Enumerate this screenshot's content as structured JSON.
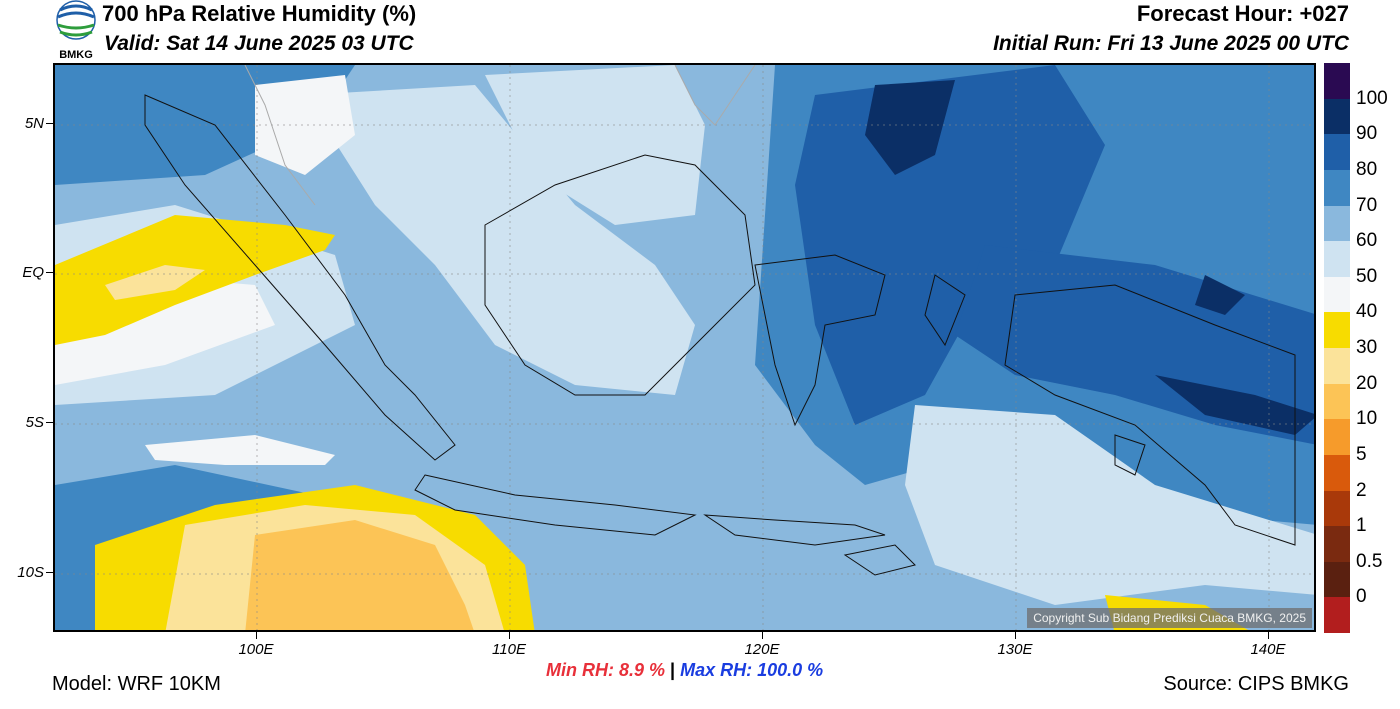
{
  "header": {
    "title": "700 hPa Relative Humidity (%)",
    "valid": "Valid: Sat 14 June 2025 03 UTC",
    "forecast_hour": "Forecast Hour: +027",
    "initial_run": "Initial Run: Fri 13 June 2025 00 UTC"
  },
  "logo": {
    "text": "BMKG"
  },
  "axes": {
    "lat_labels": [
      "5N",
      "EQ",
      "5S",
      "10S"
    ],
    "lon_labels": [
      "100E",
      "110E",
      "120E",
      "130E",
      "140E"
    ]
  },
  "colorbar": {
    "labels": [
      "100",
      "90",
      "80",
      "70",
      "60",
      "50",
      "40",
      "30",
      "20",
      "10",
      "5",
      "2",
      "1",
      "0.5",
      "0"
    ],
    "colors": [
      "#2a0a52",
      "#0b2f66",
      "#1f5fa8",
      "#3f87c2",
      "#8ab8dd",
      "#cfe3f1",
      "#f4f6f8",
      "#f7dc00",
      "#fbe39a",
      "#fcc456",
      "#f69b2b",
      "#d95a0c",
      "#a9390a",
      "#7a2a10",
      "#5a2010",
      "#b21e1e"
    ]
  },
  "stats": {
    "min_label": "Min RH:",
    "min_value": "8.9 %",
    "separator": "|",
    "max_label": "Max RH:",
    "max_value": "100.0 %"
  },
  "footer": {
    "model": "Model: WRF 10KM",
    "source": "Source: CIPS BMKG",
    "copyright": "Copyright Sub Bidang Prediksi Cuaca BMKG, 2025"
  }
}
